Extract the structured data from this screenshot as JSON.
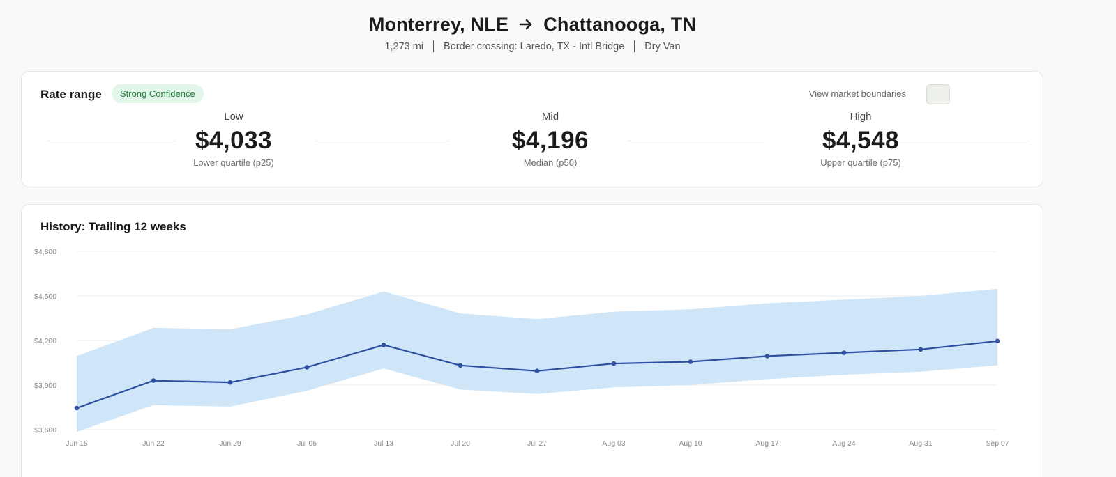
{
  "header": {
    "origin": "Monterrey, NLE",
    "destination": "Chattanooga, TN",
    "distance": "1,273 mi",
    "border_crossing": "Border crossing: Laredo, TX - Intl Bridge",
    "equipment": "Dry Van"
  },
  "rate_range": {
    "title": "Rate range",
    "confidence_badge": "Strong Confidence",
    "boundaries_label": "View market boundaries",
    "boundaries_enabled": false,
    "low": {
      "label": "Low",
      "value": "$4,033",
      "sub": "Lower quartile (p25)"
    },
    "mid": {
      "label": "Mid",
      "value": "$4,196",
      "sub": "Median (p50)"
    },
    "high": {
      "label": "High",
      "value": "$4,548",
      "sub": "Upper quartile (p75)"
    }
  },
  "history": {
    "title": "History: Trailing 12 weeks"
  },
  "colors": {
    "band": "#cfe6f9",
    "line": "#2f4f9f",
    "badge_bg": "#e3f6ea",
    "badge_text": "#1e7d3a"
  },
  "chart_data": {
    "type": "area",
    "x": [
      "Jun 15",
      "Jun 22",
      "Jun 29",
      "Jul 06",
      "Jul 13",
      "Jul 20",
      "Jul 27",
      "Aug 03",
      "Aug 10",
      "Aug 17",
      "Aug 24",
      "Aug 31",
      "Sep 07"
    ],
    "yticks": [
      "$3,600",
      "$3,900",
      "$4,200",
      "$4,500",
      "$4,800"
    ],
    "ylim": [
      3600,
      4800
    ],
    "grid": true,
    "series": [
      {
        "values": [
          3745,
          3930,
          3918,
          4020,
          4170,
          4032,
          3995,
          4045,
          4057,
          4095,
          4118,
          4140,
          4196
        ]
      },
      {
        "values": [
          3585,
          3765,
          3755,
          3862,
          4012,
          3870,
          3840,
          3885,
          3900,
          3940,
          3970,
          3990,
          4033
        ]
      },
      {
        "values": [
          4095,
          4285,
          4275,
          4375,
          4530,
          4382,
          4344,
          4394,
          4410,
          4450,
          4475,
          4500,
          4548
        ]
      }
    ]
  }
}
